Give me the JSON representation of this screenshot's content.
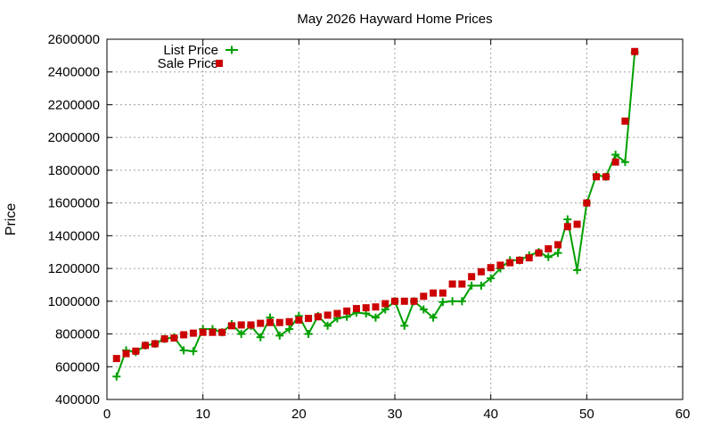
{
  "chart_data": {
    "type": "line",
    "title": "May 2026 Hayward Home Prices",
    "xlabel": "",
    "ylabel": "Price",
    "xlim": [
      0,
      60
    ],
    "ylim": [
      400000,
      2600000
    ],
    "x_ticks": [
      0,
      10,
      20,
      30,
      40,
      50,
      60
    ],
    "y_ticks": [
      400000,
      600000,
      800000,
      1000000,
      1200000,
      1400000,
      1600000,
      1800000,
      2000000,
      2200000,
      2400000,
      2600000
    ],
    "x_tick_labels": [
      "0",
      "10",
      "20",
      "30",
      "40",
      "50",
      "60"
    ],
    "y_tick_labels": [
      "400000",
      "600000",
      "800000",
      "1000000",
      "1200000",
      "1400000",
      "1600000",
      "1800000",
      "2000000",
      "2200000",
      "2400000",
      "2600000"
    ],
    "grid": true,
    "legend_position": "top-left",
    "series": [
      {
        "name": "List Price",
        "style": "line-plus",
        "color": "#00a000",
        "x": [
          1,
          2,
          3,
          4,
          5,
          6,
          7,
          8,
          9,
          10,
          11,
          12,
          13,
          14,
          15,
          16,
          17,
          18,
          19,
          20,
          21,
          22,
          23,
          24,
          25,
          26,
          27,
          28,
          29,
          30,
          31,
          32,
          33,
          34,
          35,
          36,
          37,
          38,
          39,
          40,
          41,
          42,
          43,
          44,
          45,
          46,
          47,
          48,
          49,
          50,
          51,
          52,
          53,
          54,
          55
        ],
        "values": [
          540000,
          700000,
          690000,
          730000,
          740000,
          770000,
          780000,
          700000,
          695000,
          830000,
          830000,
          810000,
          860000,
          800000,
          850000,
          780000,
          900000,
          790000,
          830000,
          910000,
          800000,
          910000,
          850000,
          895000,
          905000,
          930000,
          925000,
          900000,
          950000,
          1000000,
          850000,
          1000000,
          950000,
          900000,
          995000,
          1000000,
          1000000,
          1095000,
          1095000,
          1140000,
          1200000,
          1250000,
          1250000,
          1280000,
          1300000,
          1270000,
          1295000,
          1500000,
          1190000,
          1600000,
          1770000,
          1760000,
          1895000,
          1850000,
          2520000
        ]
      },
      {
        "name": "Sale Price",
        "style": "square-points",
        "color": "#cc0000",
        "x": [
          1,
          2,
          3,
          4,
          5,
          6,
          7,
          8,
          9,
          10,
          11,
          12,
          13,
          14,
          15,
          16,
          17,
          18,
          19,
          20,
          21,
          22,
          23,
          24,
          25,
          26,
          27,
          28,
          29,
          30,
          31,
          32,
          33,
          34,
          35,
          36,
          37,
          38,
          39,
          40,
          41,
          42,
          43,
          44,
          45,
          46,
          47,
          48,
          49,
          50,
          51,
          52,
          53,
          54,
          55
        ],
        "values": [
          650000,
          680000,
          695000,
          730000,
          740000,
          770000,
          775000,
          795000,
          805000,
          810000,
          810000,
          810000,
          850000,
          855000,
          855000,
          865000,
          870000,
          870000,
          875000,
          885000,
          895000,
          905000,
          915000,
          925000,
          940000,
          955000,
          960000,
          965000,
          985000,
          1000000,
          1000000,
          1000000,
          1030000,
          1050000,
          1050000,
          1105000,
          1105000,
          1150000,
          1180000,
          1205000,
          1220000,
          1235000,
          1250000,
          1265000,
          1295000,
          1320000,
          1345000,
          1455000,
          1470000,
          1600000,
          1760000,
          1760000,
          1850000,
          2100000,
          2525000
        ]
      }
    ]
  }
}
